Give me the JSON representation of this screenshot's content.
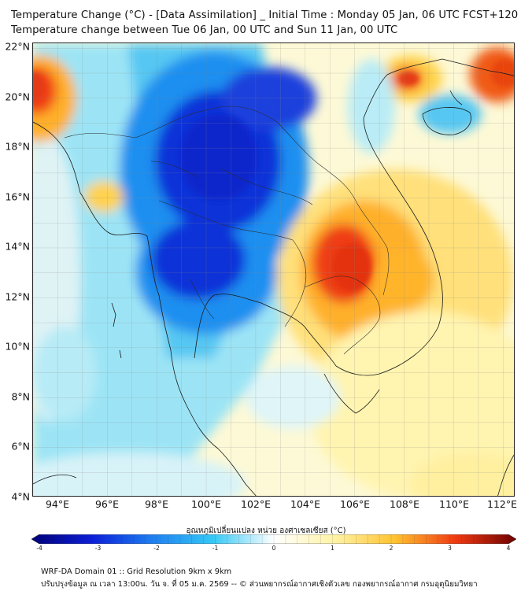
{
  "title_line1": "Temperature Change (°C) - [Data Assimilation] _ Initial Time : Monday 05 Jan, 06 UTC FCST+120",
  "title_line2": "Temperature change between Tue 06 Jan, 00 UTC and Sun 11 Jan, 00 UTC",
  "map": {
    "lon_range": [
      93,
      112.5
    ],
    "lat_range": [
      4,
      22.2
    ],
    "lat_labels": [
      "22°N",
      "20°N",
      "18°N",
      "16°N",
      "14°N",
      "12°N",
      "10°N",
      "8°N",
      "6°N",
      "4°N"
    ],
    "lon_labels": [
      "94°E",
      "96°E",
      "98°E",
      "100°E",
      "102°E",
      "104°E",
      "106°E",
      "108°E",
      "110°E",
      "112°E"
    ],
    "field_features": [
      {
        "name": "strong cooling over Myanmar, Thailand and Laos",
        "lon": 100,
        "lat": 17.5,
        "change_c": -3.2
      },
      {
        "name": "cooling over central Thailand",
        "lon": 99.5,
        "lat": 14.2,
        "change_c": -3.0
      },
      {
        "name": "strong warming over Cambodia",
        "lon": 105.2,
        "lat": 13.6,
        "change_c": 3.0
      },
      {
        "name": "warming over southern Vietnam",
        "lon": 108,
        "lat": 13.5,
        "change_c": 2.0
      },
      {
        "name": "warming over Bangladesh",
        "lon": 93.3,
        "lat": 20.5,
        "change_c": 2.6
      },
      {
        "name": "warming over Hainan and south China",
        "lon": 108.7,
        "lat": 20.8,
        "change_c": 2.4
      },
      {
        "name": "warming over Guangdong",
        "lon": 112.3,
        "lat": 21.0,
        "change_c": 2.7
      },
      {
        "name": "cooling over Gulf of Tonkin",
        "lon": 110.3,
        "lat": 19.6,
        "change_c": -1.3
      }
    ],
    "grid_lines": true
  },
  "colorbar": {
    "title": "อุณหภูมิเปลี่ยนแปลง หน่วย องศาเซลเซียส (°C)",
    "min": -4,
    "max": 4,
    "tick_labels": [
      "-4",
      "-3",
      "-2",
      "-1",
      "0",
      "1",
      "2",
      "3",
      "4"
    ],
    "colors": [
      "#00007a",
      "#0c1fd8",
      "#1f7ff0",
      "#36c8f5",
      "#ffffff",
      "#fff3a6",
      "#ffc22f",
      "#ef3a12",
      "#6e0000"
    ]
  },
  "footer_line1": "WRF-DA Domain 01 :: Grid Resolution 9km x 9km",
  "footer_line2": "ปรับปรุงข้อมูล ณ เวลา 13:00น. วัน จ. ที่ 05 ม.ค. 2569 -- © ส่วนพยากรณ์อากาศเชิงตัวเลข กองพยากรณ์อากาศ กรมอุตุนิยมวิทยา"
}
